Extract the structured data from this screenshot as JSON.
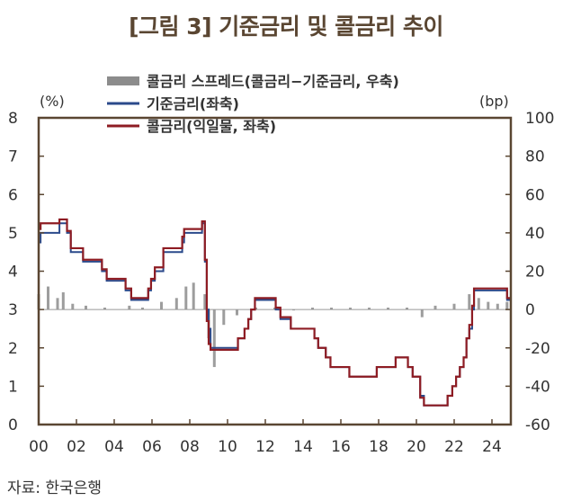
{
  "title": "[그림 3] 기준금리 및 콜금리 추이",
  "source": "자료: 한국은행",
  "chart_data": {
    "type": "line",
    "left_unit": "(%)",
    "right_unit": "(bp)",
    "ylim_left": [
      0,
      8
    ],
    "ylim_right": [
      -60,
      100
    ],
    "y_ticks_left": [
      "0",
      "1",
      "2",
      "3",
      "4",
      "5",
      "6",
      "7",
      "8"
    ],
    "y_ticks_right": [
      "-60",
      "-40",
      "-20",
      "0",
      "20",
      "40",
      "60",
      "80",
      "100"
    ],
    "xlim": [
      2000,
      2025
    ],
    "x_ticks": [
      {
        "x": 2000,
        "label": "00"
      },
      {
        "x": 2002,
        "label": "02"
      },
      {
        "x": 2004,
        "label": "04"
      },
      {
        "x": 2006,
        "label": "06"
      },
      {
        "x": 2008,
        "label": "08"
      },
      {
        "x": 2010,
        "label": "10"
      },
      {
        "x": 2012,
        "label": "12"
      },
      {
        "x": 2014,
        "label": "14"
      },
      {
        "x": 2016,
        "label": "16"
      },
      {
        "x": 2018,
        "label": "18"
      },
      {
        "x": 2020,
        "label": "20"
      },
      {
        "x": 2022,
        "label": "22"
      },
      {
        "x": 2024,
        "label": "24"
      }
    ],
    "series": [
      {
        "name": "콜금리 스프레드(콜금리−기준금리, 우축)",
        "type": "bar",
        "axis": "right",
        "color": "#8c8c8c",
        "x": [
          2000.0,
          2000.5,
          2001.0,
          2001.3,
          2001.8,
          2002.5,
          2003.5,
          2004.8,
          2005.5,
          2006.5,
          2007.3,
          2007.8,
          2008.2,
          2008.8,
          2009.0,
          2009.3,
          2009.8,
          2010.5,
          2011.5,
          2012.5,
          2013.5,
          2014.5,
          2015.5,
          2016.5,
          2017.5,
          2018.5,
          2019.5,
          2020.3,
          2021.0,
          2022.0,
          2022.8,
          2023.3,
          2023.8,
          2024.3,
          2024.8
        ],
        "values": [
          8,
          12,
          6,
          9,
          3,
          2,
          1,
          2,
          1,
          4,
          6,
          12,
          14,
          8,
          -15,
          -30,
          -8,
          -3,
          1,
          1,
          0,
          1,
          1,
          1,
          1,
          1,
          1,
          -4,
          2,
          3,
          8,
          6,
          4,
          3,
          4
        ]
      },
      {
        "name": "기준금리(좌축)",
        "type": "line",
        "axis": "left",
        "color": "#2b4a8b",
        "x": [
          2000.0,
          2000.1,
          2001.1,
          2001.5,
          2001.7,
          2002.35,
          2003.35,
          2003.6,
          2004.6,
          2004.9,
          2005.8,
          2005.95,
          2006.15,
          2006.6,
          2007.6,
          2007.7,
          2008.65,
          2008.8,
          2008.9,
          2009.0,
          2009.1,
          2010.55,
          2010.9,
          2011.1,
          2011.25,
          2011.45,
          2012.55,
          2012.8,
          2013.35,
          2014.6,
          2014.8,
          2015.2,
          2015.45,
          2016.45,
          2017.9,
          2018.9,
          2019.55,
          2019.8,
          2020.2,
          2020.4,
          2021.65,
          2021.9,
          2022.1,
          2022.3,
          2022.5,
          2022.65,
          2022.8,
          2022.95,
          2023.05,
          2024.8
        ],
        "values": [
          4.75,
          5.0,
          5.25,
          5.0,
          4.5,
          4.25,
          4.0,
          3.75,
          3.5,
          3.25,
          3.5,
          3.75,
          4.0,
          4.5,
          4.75,
          5.0,
          5.25,
          4.25,
          3.0,
          2.5,
          2.0,
          2.25,
          2.5,
          2.75,
          3.0,
          3.25,
          3.0,
          2.75,
          2.5,
          2.25,
          2.0,
          1.75,
          1.5,
          1.25,
          1.5,
          1.75,
          1.5,
          1.25,
          0.75,
          0.5,
          0.75,
          1.0,
          1.25,
          1.5,
          1.75,
          2.25,
          2.5,
          3.0,
          3.5,
          3.25
        ]
      },
      {
        "name": "콜금리(익일물, 좌축)",
        "type": "line",
        "axis": "left",
        "color": "#8e1c23",
        "x": [
          2000.0,
          2000.1,
          2001.1,
          2001.5,
          2001.7,
          2002.35,
          2003.35,
          2003.6,
          2004.6,
          2004.9,
          2005.8,
          2005.95,
          2006.15,
          2006.6,
          2007.6,
          2007.7,
          2008.65,
          2008.8,
          2008.9,
          2009.0,
          2009.1,
          2010.55,
          2010.9,
          2011.1,
          2011.25,
          2011.45,
          2012.55,
          2012.8,
          2013.35,
          2014.6,
          2014.8,
          2015.2,
          2015.45,
          2016.45,
          2017.9,
          2018.9,
          2019.55,
          2019.8,
          2020.2,
          2020.4,
          2021.65,
          2021.9,
          2022.1,
          2022.3,
          2022.5,
          2022.65,
          2022.8,
          2022.95,
          2023.05,
          2024.8
        ],
        "values": [
          5.1,
          5.25,
          5.35,
          5.05,
          4.6,
          4.3,
          4.05,
          3.8,
          3.55,
          3.3,
          3.55,
          3.8,
          4.1,
          4.6,
          4.9,
          5.1,
          5.3,
          4.3,
          2.7,
          2.1,
          1.95,
          2.25,
          2.5,
          2.75,
          3.0,
          3.3,
          3.05,
          2.8,
          2.5,
          2.25,
          2.0,
          1.75,
          1.5,
          1.25,
          1.5,
          1.75,
          1.5,
          1.25,
          0.7,
          0.5,
          0.75,
          1.0,
          1.25,
          1.5,
          1.75,
          2.25,
          2.6,
          3.1,
          3.55,
          3.3
        ]
      }
    ],
    "legend_position": "top"
  }
}
